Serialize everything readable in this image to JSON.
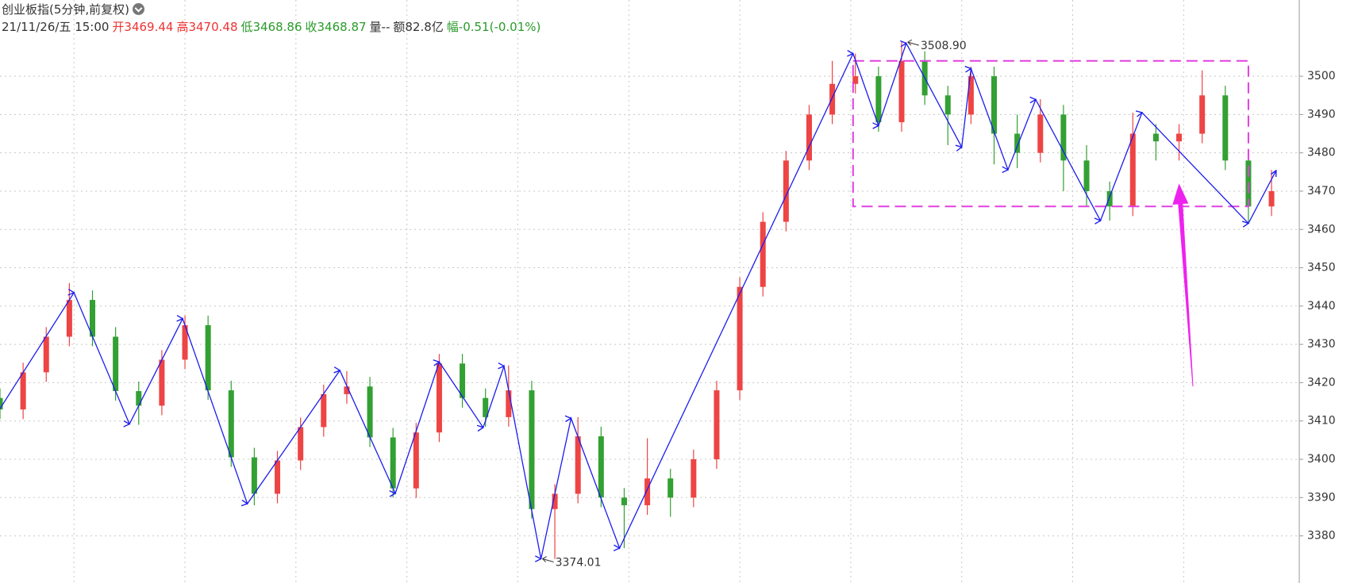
{
  "chart_data": {
    "type": "candlestick",
    "title": "创业板指(5分钟,前复权)",
    "info": [
      {
        "text": "21/11/26/五 15:00",
        "color": "#333333"
      },
      {
        "text": "开3469.44",
        "color": "#ee3333"
      },
      {
        "text": "高3470.48",
        "color": "#ee3333"
      },
      {
        "text": "低3468.86",
        "color": "#2a9a2a"
      },
      {
        "text": "收3468.87",
        "color": "#2a9a2a"
      },
      {
        "text": "量--",
        "color": "#333333"
      },
      {
        "text": "额82.8亿",
        "color": "#333333"
      },
      {
        "text": "幅-0.51(-0.01%)",
        "color": "#2a9a2a"
      }
    ],
    "xlim": [
      0,
      562
    ],
    "ylim": [
      3367.7,
      3519.9
    ],
    "yticks": [
      3380,
      3390,
      3400,
      3410,
      3420,
      3430,
      3440,
      3450,
      3460,
      3470,
      3480,
      3490,
      3500
    ],
    "x_gridlines": [
      32,
      80,
      128,
      176,
      224,
      272,
      320,
      368,
      416,
      464,
      512
    ],
    "grid": true,
    "up_color": "#ee4444",
    "down_color": "#33a033",
    "candles": {
      "x": [
        0,
        10,
        20,
        30,
        40,
        50,
        60,
        70,
        80,
        90,
        100,
        110,
        120,
        130,
        140,
        150,
        160,
        170,
        180,
        190,
        200,
        210,
        220,
        230,
        240,
        250,
        260,
        270,
        280,
        290,
        300,
        310,
        320,
        330,
        340,
        350,
        360,
        370,
        380,
        390,
        400,
        410,
        420,
        430,
        440,
        450,
        460,
        470,
        480,
        490,
        500,
        510,
        520,
        530,
        540,
        550
      ],
      "open": [
        3416,
        3413,
        3422.7,
        3432,
        3441.6,
        3432,
        3417.8,
        3414,
        3426,
        3435,
        3418,
        3400.5,
        3391,
        3399.7,
        3408.4,
        3417,
        3419,
        3405.7,
        3392.4,
        3407,
        3425,
        3416,
        3411,
        3418,
        3387,
        3391,
        3406,
        3390,
        3388,
        3395,
        3390,
        3400,
        3418,
        3445,
        3462,
        3478,
        3490,
        3498,
        3500,
        3488,
        3504,
        3495,
        3490,
        3500,
        3485,
        3480,
        3490,
        3478,
        3470,
        3466,
        3485,
        3483,
        3485,
        3495,
        3478,
        3466
      ],
      "high": [
        3418.5,
        3425.2,
        3434.5,
        3446,
        3444.1,
        3434.5,
        3420.3,
        3428.5,
        3437.5,
        3437.5,
        3420.5,
        3403,
        3402.2,
        3410.9,
        3419.5,
        3423,
        3421.5,
        3408.2,
        3409.5,
        3427.5,
        3427.5,
        3418.5,
        3424.5,
        3420.5,
        3393.5,
        3411,
        3408.5,
        3392.5,
        3405.5,
        3397.5,
        3402.5,
        3420.5,
        3447.5,
        3464.5,
        3480.5,
        3492.5,
        3504,
        3505.9,
        3502.5,
        3508.9,
        3506.5,
        3497.5,
        3502.5,
        3502.5,
        3490,
        3494,
        3492.5,
        3482,
        3472.5,
        3490.5,
        3487.5,
        3487.5,
        3501.5,
        3497.5,
        3480.5,
        3475.5
      ],
      "low": [
        3410.5,
        3410.5,
        3420.2,
        3429.5,
        3429.5,
        3415.3,
        3409,
        3411.5,
        3423.5,
        3415.5,
        3398,
        3388,
        3388.5,
        3397.2,
        3405.9,
        3414.5,
        3403.2,
        3390,
        3389.9,
        3404.5,
        3413.5,
        3408.5,
        3408.5,
        3384.5,
        3374,
        3388.5,
        3387.5,
        3376.8,
        3385.5,
        3385,
        3387.5,
        3397.5,
        3415.5,
        3442.5,
        3459.5,
        3475.5,
        3487.5,
        3495.5,
        3485.5,
        3485.5,
        3492.5,
        3482,
        3487.5,
        3477,
        3476,
        3477.5,
        3470,
        3466,
        3462.3,
        3463.5,
        3478,
        3478,
        3482.5,
        3475.5,
        3461.6,
        3463.5
      ],
      "close": [
        3413,
        3422.7,
        3432,
        3441.6,
        3432,
        3417.8,
        3414,
        3426,
        3435,
        3418,
        3400.5,
        3391,
        3399.7,
        3408.4,
        3417,
        3419,
        3405.7,
        3392.4,
        3407,
        3425,
        3416,
        3411,
        3418,
        3387,
        3391,
        3406,
        3390,
        3388,
        3395,
        3390,
        3400,
        3418,
        3445,
        3462,
        3478,
        3490,
        3498,
        3500,
        3488,
        3504,
        3495,
        3490,
        3500,
        3485,
        3480,
        3490,
        3478,
        3470,
        3466,
        3485,
        3483,
        3485,
        3495,
        3478,
        3466,
        3470
      ]
    },
    "zigzag": {
      "color": "#1c1cf0",
      "x": [
        0,
        32,
        56,
        79,
        107,
        147,
        171,
        190,
        209,
        218,
        234,
        247,
        268,
        369,
        380,
        392,
        416,
        420,
        436,
        448,
        476,
        494,
        540,
        552
      ],
      "values": [
        3413.2,
        3443.5,
        3409.2,
        3436.7,
        3388.4,
        3423.2,
        3391.1,
        3425.4,
        3408.3,
        3424.3,
        3374.0,
        3410.7,
        3376.8,
        3505.9,
        3487.1,
        3508.6,
        3481.5,
        3502.0,
        3475.6,
        3493.9,
        3462.3,
        3490.5,
        3461.6,
        3475.4
      ]
    },
    "annotations": [
      {
        "x": 392,
        "value": 3508.9,
        "label": "3508.90"
      },
      {
        "x": 234,
        "value": 3374.01,
        "label": "3374.01"
      }
    ],
    "box": {
      "x": [
        369,
        540
      ],
      "y": [
        3466,
        3504
      ],
      "color": "#e040e0"
    },
    "arrow": {
      "x": [
        516,
        510
      ],
      "y": [
        3419,
        3472
      ],
      "color": "#ee22ee"
    }
  }
}
